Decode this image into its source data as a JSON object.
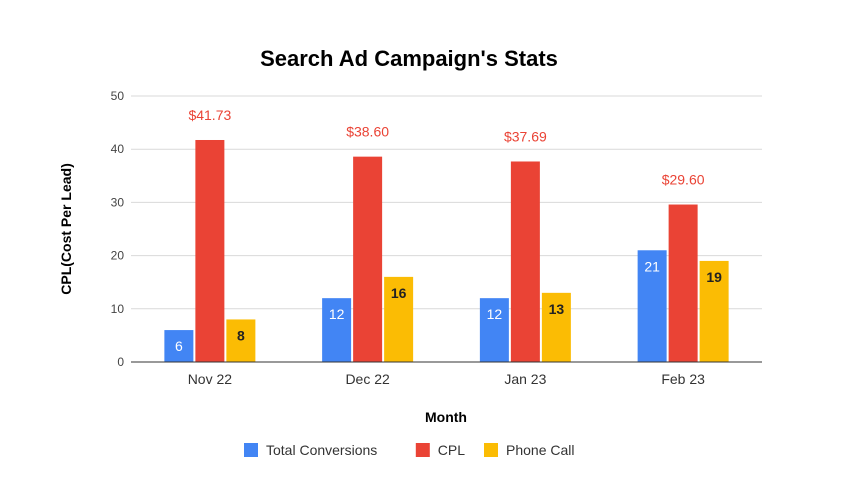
{
  "chart_data": {
    "type": "bar",
    "title": "Search Ad Campaign's Stats",
    "xlabel": "Month",
    "ylabel": "CPL(Cost Per Lead)",
    "ylim": [
      0,
      50
    ],
    "yticks": [
      0,
      10,
      20,
      30,
      40,
      50
    ],
    "grid": true,
    "legend_position": "bottom",
    "categories": [
      "Nov 22",
      "Dec 22",
      "Jan 23",
      "Feb 23"
    ],
    "series": [
      {
        "name": "Total Conversions",
        "color": "#4285f4",
        "values": [
          6,
          12,
          12,
          21
        ],
        "labels": [
          "6",
          "12",
          "12",
          "21"
        ],
        "label_position": "inside",
        "label_color": "#ffffff"
      },
      {
        "name": "CPL",
        "color": "#ea4335",
        "values": [
          41.73,
          38.6,
          37.69,
          29.6
        ],
        "labels": [
          "$41.73",
          "$38.60",
          "$37.69",
          "$29.60"
        ],
        "label_position": "above",
        "label_color": "#ea4335"
      },
      {
        "name": "Phone Call",
        "color": "#fbbc04",
        "values": [
          8,
          16,
          13,
          19
        ],
        "labels": [
          "8",
          "16",
          "13",
          "19"
        ],
        "label_position": "inside",
        "label_color": "#222222"
      }
    ]
  }
}
